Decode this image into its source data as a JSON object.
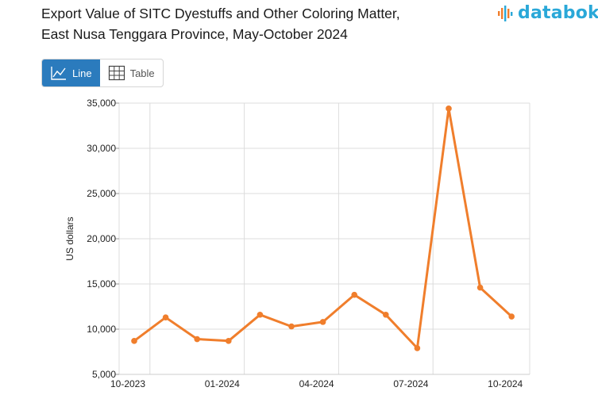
{
  "header": {
    "title_line1": "Export Value of SITC Dyestuffs and Other Coloring Matter,",
    "title_line2": "East Nusa Tenggara Province, May-October 2024",
    "logo_text": "databoks"
  },
  "view_toggle": {
    "line_label": "Line",
    "table_label": "Table",
    "selected": "Line"
  },
  "colors": {
    "series": "#f07e2c",
    "accent": "#2b7bbd",
    "logo": "#2aa8d8"
  },
  "chart_data": {
    "type": "line",
    "ylabel": "US dollars",
    "xlabel": "",
    "ylim": [
      5000,
      35000
    ],
    "yticks": [
      "5,000",
      "10,000",
      "15,000",
      "20,000",
      "25,000",
      "30,000",
      "35,000"
    ],
    "xticks": [
      "10-2023",
      "01-2024",
      "04-2024",
      "07-2024",
      "10-2024"
    ],
    "grid": true,
    "x": [
      "10-2023",
      "11-2023",
      "12-2023",
      "01-2024",
      "02-2024",
      "03-2024",
      "04-2024",
      "05-2024",
      "06-2024",
      "07-2024",
      "08-2024",
      "09-2024",
      "10-2024"
    ],
    "series": [
      {
        "values": [
          8700,
          11300,
          8900,
          8700,
          11600,
          10300,
          10800,
          13800,
          11600,
          7900,
          34400,
          14600,
          11400
        ]
      }
    ]
  }
}
